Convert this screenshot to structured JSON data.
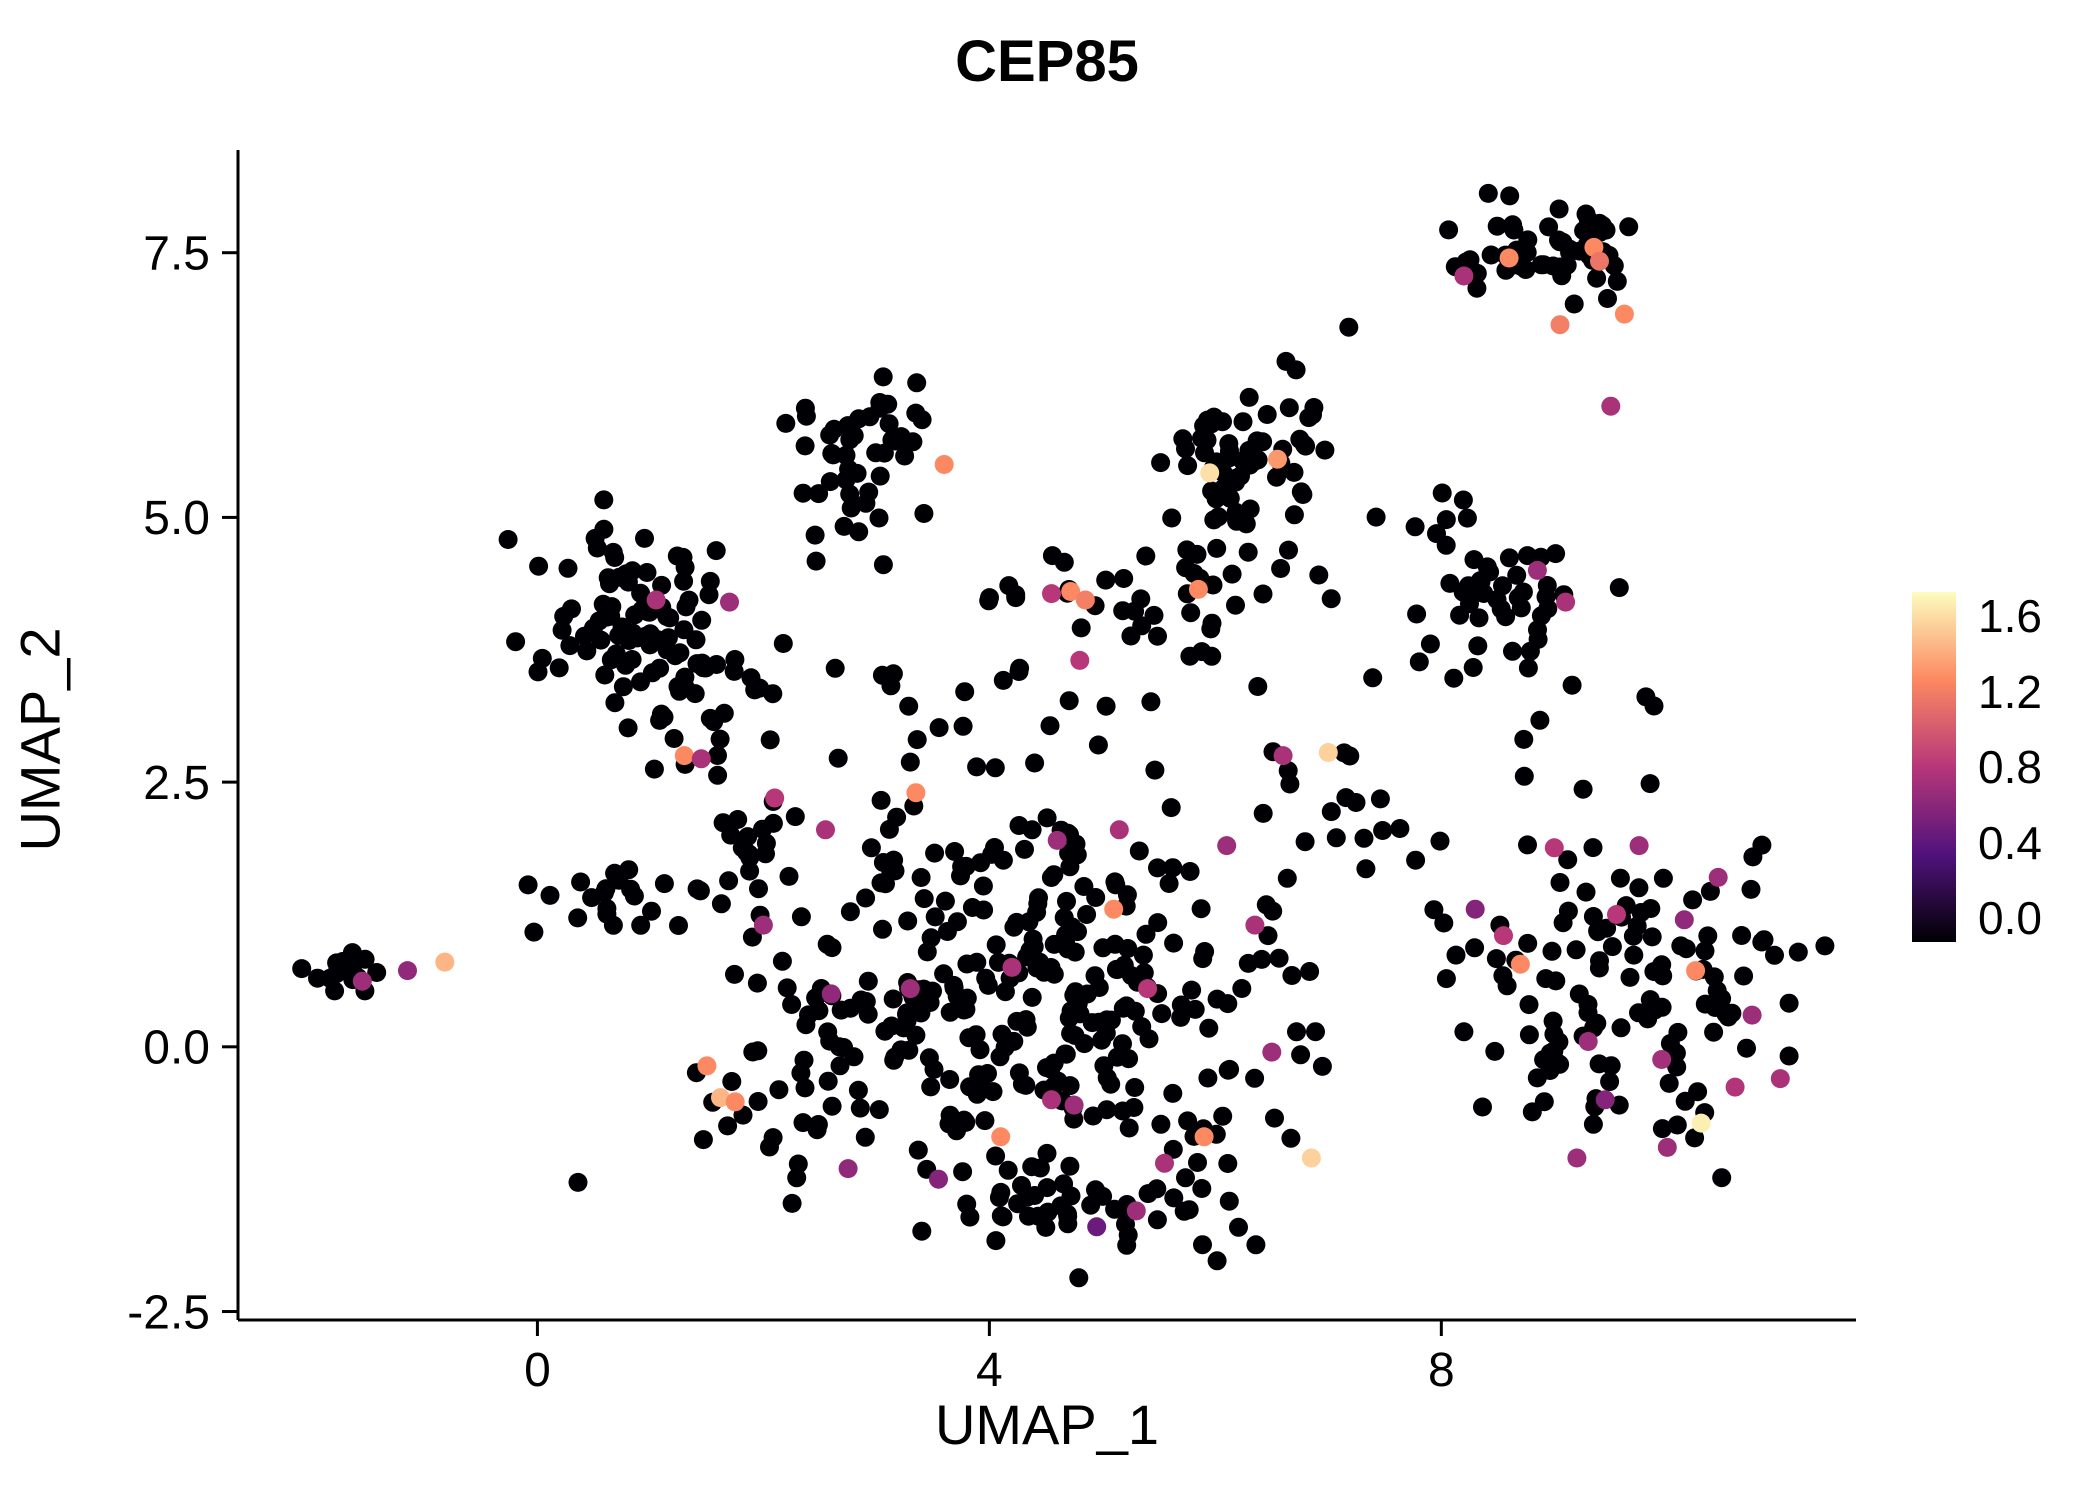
{
  "chart_data": {
    "type": "scatter",
    "title": "CEP85",
    "xlabel": "UMAP_1",
    "ylabel": "UMAP_2",
    "xlim": [
      -2.65,
      11.67
    ],
    "ylim": [
      -2.58,
      8.47
    ],
    "grid": false,
    "x_ticks": [
      {
        "v": 0,
        "label": "0"
      },
      {
        "v": 4,
        "label": "4"
      },
      {
        "v": 8,
        "label": "8"
      }
    ],
    "y_ticks": [
      {
        "v": -2.5,
        "label": "-2.5"
      },
      {
        "v": 0.0,
        "label": "0.0"
      },
      {
        "v": 2.5,
        "label": "2.5"
      },
      {
        "v": 5.0,
        "label": "5.0"
      },
      {
        "v": 7.5,
        "label": "7.5"
      }
    ],
    "point_radius": 9.5,
    "colorbar": {
      "title": "",
      "min": 0.0,
      "max": 1.6,
      "ticks": [
        {
          "v": 1.6,
          "label": "1.6"
        },
        {
          "v": 1.2,
          "label": "1.2"
        },
        {
          "v": 0.8,
          "label": "0.8"
        },
        {
          "v": 0.4,
          "label": "0.4"
        },
        {
          "v": 0.0,
          "label": "0.0"
        }
      ],
      "stops": [
        {
          "v": 0.0,
          "c": "#000004"
        },
        {
          "v": 0.4,
          "c": "#51127c"
        },
        {
          "v": 0.8,
          "c": "#b73779"
        },
        {
          "v": 1.2,
          "c": "#fc8961"
        },
        {
          "v": 1.6,
          "c": "#fcfdbf"
        }
      ]
    },
    "clusters": [
      {
        "x": -1.65,
        "y": 0.68,
        "sx": 0.16,
        "sy": 0.1,
        "n": 14,
        "value": 0
      },
      {
        "x": 0.95,
        "y": 4.0,
        "sx": 0.45,
        "sy": 0.42,
        "n": 85,
        "value": 0
      },
      {
        "x": 1.55,
        "y": 3.3,
        "sx": 0.35,
        "sy": 0.3,
        "n": 25,
        "value": 0
      },
      {
        "x": 0.75,
        "y": 1.4,
        "sx": 0.45,
        "sy": 0.18,
        "n": 22,
        "value": 0
      },
      {
        "x": 1.8,
        "y": 2.0,
        "sx": 0.3,
        "sy": 0.35,
        "n": 18,
        "value": 0
      },
      {
        "x": 2.9,
        "y": 5.75,
        "sx": 0.28,
        "sy": 0.28,
        "n": 38,
        "value": 0
      },
      {
        "x": 2.65,
        "y": 5.0,
        "sx": 0.2,
        "sy": 0.2,
        "n": 8,
        "value": 0
      },
      {
        "x": 6.3,
        "y": 5.6,
        "sx": 0.42,
        "sy": 0.35,
        "n": 60,
        "value": 0
      },
      {
        "x": 6.1,
        "y": 4.4,
        "sx": 0.5,
        "sy": 0.45,
        "n": 35,
        "value": 0
      },
      {
        "x": 9.05,
        "y": 7.5,
        "sx": 0.42,
        "sy": 0.22,
        "n": 55,
        "value": 0
      },
      {
        "x": 8.55,
        "y": 4.15,
        "sx": 0.5,
        "sy": 0.4,
        "n": 45,
        "value": 0
      },
      {
        "x": 4.3,
        "y": 0.6,
        "sx": 1.25,
        "sy": 0.85,
        "n": 300,
        "value": 0
      },
      {
        "x": 4.9,
        "y": -1.35,
        "sx": 0.9,
        "sy": 0.3,
        "n": 55,
        "value": 0
      },
      {
        "x": 9.7,
        "y": 0.45,
        "sx": 0.75,
        "sy": 0.7,
        "n": 125,
        "value": 0
      },
      {
        "x": 3.6,
        "y": 3.3,
        "sx": 0.8,
        "sy": 0.6,
        "n": 30,
        "value": 0
      },
      {
        "x": 4.6,
        "y": 4.3,
        "sx": 0.4,
        "sy": 0.2,
        "n": 12,
        "value": 0
      },
      {
        "x": 7.3,
        "y": 2.3,
        "sx": 0.4,
        "sy": 0.5,
        "n": 15,
        "value": 0
      },
      {
        "x": 2.2,
        "y": -0.4,
        "sx": 0.4,
        "sy": 0.4,
        "n": 20,
        "value": 0
      },
      {
        "x": 7.9,
        "y": 5.0,
        "sx": 0.3,
        "sy": 0.3,
        "n": 6,
        "value": 0
      },
      {
        "x": 8.9,
        "y": 3.0,
        "sx": 0.3,
        "sy": 0.3,
        "n": 6,
        "value": 0
      }
    ],
    "expressing_points": [
      {
        "x": -1.55,
        "y": 0.62,
        "v": 0.7
      },
      {
        "x": -1.15,
        "y": 0.72,
        "v": 0.65
      },
      {
        "x": -0.82,
        "y": 0.8,
        "v": 1.35
      },
      {
        "x": 1.3,
        "y": 2.75,
        "v": 1.2
      },
      {
        "x": 1.45,
        "y": 2.72,
        "v": 0.75
      },
      {
        "x": 2.1,
        "y": 2.35,
        "v": 0.8
      },
      {
        "x": 2.55,
        "y": 2.05,
        "v": 0.75
      },
      {
        "x": 1.7,
        "y": 4.2,
        "v": 0.7
      },
      {
        "x": 1.05,
        "y": 4.22,
        "v": 0.75
      },
      {
        "x": 3.6,
        "y": 5.5,
        "v": 1.2
      },
      {
        "x": 5.95,
        "y": 5.42,
        "v": 1.5
      },
      {
        "x": 6.55,
        "y": 5.55,
        "v": 1.25
      },
      {
        "x": 4.55,
        "y": 4.28,
        "v": 0.8
      },
      {
        "x": 4.72,
        "y": 4.3,
        "v": 1.2
      },
      {
        "x": 4.85,
        "y": 4.22,
        "v": 1.15
      },
      {
        "x": 5.85,
        "y": 4.32,
        "v": 1.2
      },
      {
        "x": 4.8,
        "y": 3.65,
        "v": 0.8
      },
      {
        "x": 8.6,
        "y": 7.45,
        "v": 1.2
      },
      {
        "x": 9.35,
        "y": 7.55,
        "v": 1.2
      },
      {
        "x": 9.4,
        "y": 7.42,
        "v": 1.1
      },
      {
        "x": 9.62,
        "y": 6.92,
        "v": 1.2
      },
      {
        "x": 9.05,
        "y": 6.82,
        "v": 1.15
      },
      {
        "x": 8.2,
        "y": 7.28,
        "v": 0.75
      },
      {
        "x": 9.5,
        "y": 6.05,
        "v": 0.75
      },
      {
        "x": 8.85,
        "y": 4.5,
        "v": 0.7
      },
      {
        "x": 9.1,
        "y": 4.2,
        "v": 0.75
      },
      {
        "x": 5.15,
        "y": 2.05,
        "v": 0.75
      },
      {
        "x": 4.6,
        "y": 1.95,
        "v": 0.7
      },
      {
        "x": 3.35,
        "y": 2.4,
        "v": 1.2
      },
      {
        "x": 5.1,
        "y": 1.3,
        "v": 1.2
      },
      {
        "x": 4.2,
        "y": 0.75,
        "v": 0.75
      },
      {
        "x": 3.3,
        "y": 0.55,
        "v": 0.7
      },
      {
        "x": 5.4,
        "y": 0.55,
        "v": 0.8
      },
      {
        "x": 2.0,
        "y": 1.15,
        "v": 0.7
      },
      {
        "x": 2.6,
        "y": 0.5,
        "v": 0.65
      },
      {
        "x": 4.55,
        "y": -0.5,
        "v": 0.75
      },
      {
        "x": 4.75,
        "y": -0.55,
        "v": 0.7
      },
      {
        "x": 4.1,
        "y": -0.85,
        "v": 1.2
      },
      {
        "x": 5.9,
        "y": -0.85,
        "v": 1.2
      },
      {
        "x": 6.85,
        "y": -1.05,
        "v": 1.45
      },
      {
        "x": 5.3,
        "y": -1.55,
        "v": 0.7
      },
      {
        "x": 4.95,
        "y": -1.7,
        "v": 0.5
      },
      {
        "x": 3.55,
        "y": -1.25,
        "v": 0.6
      },
      {
        "x": 2.75,
        "y": -1.15,
        "v": 0.65
      },
      {
        "x": 5.55,
        "y": -1.1,
        "v": 0.75
      },
      {
        "x": 1.5,
        "y": -0.18,
        "v": 1.2
      },
      {
        "x": 1.62,
        "y": -0.48,
        "v": 1.35
      },
      {
        "x": 1.75,
        "y": -0.52,
        "v": 1.2
      },
      {
        "x": 6.6,
        "y": 2.75,
        "v": 0.75
      },
      {
        "x": 7.0,
        "y": 2.78,
        "v": 1.45
      },
      {
        "x": 6.1,
        "y": 1.9,
        "v": 0.7
      },
      {
        "x": 6.35,
        "y": 1.15,
        "v": 0.75
      },
      {
        "x": 6.5,
        "y": -0.05,
        "v": 0.7
      },
      {
        "x": 8.7,
        "y": 0.78,
        "v": 1.2
      },
      {
        "x": 10.25,
        "y": 0.72,
        "v": 1.2
      },
      {
        "x": 10.3,
        "y": -0.72,
        "v": 1.55
      },
      {
        "x": 9.0,
        "y": 1.88,
        "v": 0.8
      },
      {
        "x": 9.55,
        "y": 1.25,
        "v": 0.8
      },
      {
        "x": 10.45,
        "y": 1.6,
        "v": 0.7
      },
      {
        "x": 9.3,
        "y": 0.05,
        "v": 0.7
      },
      {
        "x": 9.95,
        "y": -0.12,
        "v": 0.72
      },
      {
        "x": 10.6,
        "y": -0.38,
        "v": 0.78
      },
      {
        "x": 9.2,
        "y": -1.05,
        "v": 0.7
      },
      {
        "x": 8.55,
        "y": 1.05,
        "v": 0.8
      },
      {
        "x": 8.3,
        "y": 1.3,
        "v": 0.6
      },
      {
        "x": 9.75,
        "y": 1.9,
        "v": 0.7
      },
      {
        "x": 10.15,
        "y": 1.2,
        "v": 0.65
      },
      {
        "x": 9.45,
        "y": -0.5,
        "v": 0.6
      },
      {
        "x": 10.0,
        "y": -0.95,
        "v": 0.7
      },
      {
        "x": 11.0,
        "y": -0.3,
        "v": 0.75
      },
      {
        "x": 10.75,
        "y": 0.3,
        "v": 0.7
      }
    ]
  }
}
